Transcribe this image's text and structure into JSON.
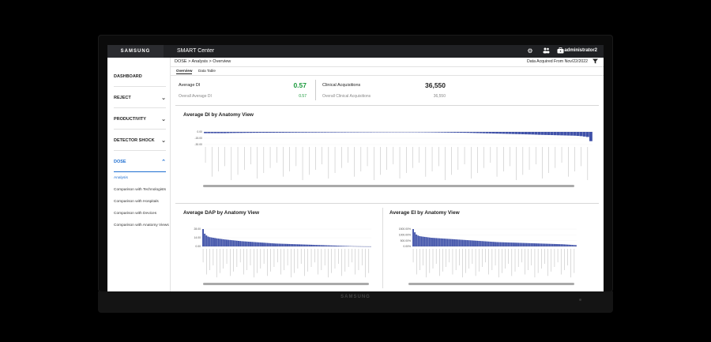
{
  "device": {
    "base_logo": "SAMSUNG"
  },
  "topbar": {
    "brand": "SAMSUNG",
    "title": "SMART Center",
    "user": "administrator2",
    "icons": [
      "gear-icon",
      "users-icon",
      "briefcase-icon"
    ]
  },
  "sidebar": {
    "items": [
      {
        "label": "DASHBOARD",
        "chevron": ""
      },
      {
        "label": "REJECT",
        "chevron": "⌄"
      },
      {
        "label": "PRODUCTIVITY",
        "chevron": "⌄"
      },
      {
        "label": "DETECTOR SHOCK",
        "chevron": "⌄"
      },
      {
        "label": "DOSE",
        "chevron": "⌃"
      }
    ],
    "subitems": [
      "Analysis",
      "Comparison with Technologists",
      "Comparison with Hospitals",
      "Comparison with Devices",
      "Comparison with Anatomy Views"
    ]
  },
  "breadcrumb": "DOSE > Analysis > Overview",
  "acquired": "Data Acquired From Nov/22/2022",
  "tabs": [
    "Overview",
    "Data Table"
  ],
  "kpis": {
    "avg_di_label": "Average DI",
    "avg_di_value": "0.57",
    "overall_di_label": "Overall Average DI",
    "overall_di_value": "0.57",
    "acq_label": "Clinical Acquisitions",
    "acq_value": "36,550",
    "overall_acq_label": "Overall Clinical Acquisitions",
    "overall_acq_value": "36,550",
    "accent_green": "#1a9a3c"
  },
  "chart_data": [
    {
      "type": "bar",
      "title": "Average DI by Anatomy View",
      "yticks": [
        "0.00",
        "-15.00",
        "-30.00"
      ],
      "ylim": [
        -30,
        0
      ],
      "bar_color": "#3f51a8",
      "count": 120,
      "values": [
        -3,
        -3,
        -3,
        -3,
        -3,
        -3,
        -3,
        -2.8,
        -2.6,
        -2.5,
        -2.4,
        -2.4,
        -2.3,
        -2.2,
        -2.2,
        -2.1,
        -2.1,
        -2,
        -2,
        -2,
        -1.9,
        -1.9,
        -1.8,
        -1.8,
        -1.8,
        -1.7,
        -1.7,
        -1.6,
        -1.6,
        -1.5,
        -1.5,
        -1.5,
        -1.4,
        -1.4,
        -1.4,
        -1.3,
        -1.3,
        -1.3,
        -1.2,
        -1.2,
        -1.2,
        -1.1,
        -1.1,
        -1.1,
        -1,
        -1,
        -1,
        -1,
        -0.9,
        -0.9,
        -0.9,
        -0.9,
        -0.8,
        -0.8,
        -0.8,
        -0.8,
        -0.8,
        -0.7,
        -0.7,
        -0.7,
        -0.7,
        -0.7,
        -0.7,
        -0.8,
        -0.8,
        -0.8,
        -0.9,
        -0.9,
        -1,
        -1,
        -1.1,
        -1.2,
        -1.3,
        -1.4,
        -1.5,
        -1.6,
        -1.7,
        -1.8,
        -1.9,
        -2,
        -2.1,
        -2.2,
        -2.4,
        -2.6,
        -2.8,
        -3,
        -3.2,
        -3.4,
        -3.6,
        -3.8,
        -4,
        -4.2,
        -4.4,
        -4.6,
        -4.8,
        -5,
        -5.2,
        -5.4,
        -5.6,
        -5.8,
        -6,
        -6.2,
        -6.5,
        -6.8,
        -7,
        -7.2,
        -7.4,
        -7.6,
        -7.8,
        -8,
        -8.2,
        -8.4,
        -8.6,
        -8.8,
        -9,
        -9.5,
        -10,
        -11,
        -12,
        -22
      ]
    },
    {
      "type": "bar",
      "title": "Average DAP by Anatomy View",
      "yticks": [
        "28.00",
        "14.00",
        "0.00"
      ],
      "ylim": [
        0,
        30
      ],
      "bar_color": "#3f51a8",
      "count": 100,
      "values": [
        30,
        22,
        19,
        17,
        16,
        15.5,
        15,
        14.5,
        14,
        13.6,
        13.2,
        12.8,
        12.4,
        12,
        11.7,
        11.4,
        11.1,
        10.8,
        10.5,
        10.2,
        9.9,
        9.6,
        9.3,
        9,
        8.8,
        8.6,
        8.4,
        8.2,
        8,
        7.8,
        7.6,
        7.4,
        7.2,
        7,
        6.8,
        6.6,
        6.4,
        6.2,
        6,
        5.8,
        5.6,
        5.4,
        5.2,
        5,
        4.9,
        4.8,
        4.7,
        4.6,
        4.5,
        4.4,
        4.3,
        4.2,
        4.1,
        4,
        3.9,
        3.8,
        3.7,
        3.6,
        3.5,
        3.4,
        3.3,
        3.2,
        3.1,
        3,
        2.9,
        2.8,
        2.7,
        2.6,
        2.5,
        2.4,
        2.3,
        2.2,
        2.1,
        2,
        1.9,
        1.8,
        1.7,
        1.6,
        1.5,
        1.4,
        1.3,
        1.2,
        1.1,
        1,
        0.9,
        0.8,
        0.7,
        0.6,
        0.5,
        0.4,
        0.35,
        0.3,
        0.25,
        0.2,
        0.15,
        0.1,
        0.08,
        0.06,
        0.04,
        0.02
      ]
    },
    {
      "type": "bar",
      "title": "Average EI by Anatomy View",
      "yticks": [
        "1500.00%",
        "1000.00%",
        "500.00%",
        "0.00%"
      ],
      "ylim": [
        0,
        1600
      ],
      "bar_color": "#3f51a8",
      "count": 100,
      "values": [
        1600,
        1300,
        1100,
        1000,
        950,
        920,
        900,
        880,
        860,
        840,
        820,
        800,
        790,
        780,
        770,
        760,
        750,
        740,
        730,
        720,
        710,
        700,
        690,
        680,
        670,
        660,
        650,
        640,
        630,
        620,
        610,
        600,
        590,
        580,
        570,
        560,
        550,
        540,
        530,
        520,
        510,
        500,
        490,
        480,
        470,
        460,
        450,
        440,
        430,
        420,
        410,
        400,
        395,
        390,
        385,
        380,
        375,
        370,
        365,
        360,
        355,
        350,
        345,
        340,
        335,
        330,
        325,
        320,
        315,
        310,
        305,
        300,
        295,
        290,
        285,
        280,
        275,
        270,
        265,
        260,
        255,
        250,
        245,
        240,
        235,
        230,
        225,
        220,
        215,
        210,
        205,
        200,
        190,
        180,
        170,
        160,
        150,
        140,
        130,
        120
      ]
    }
  ]
}
